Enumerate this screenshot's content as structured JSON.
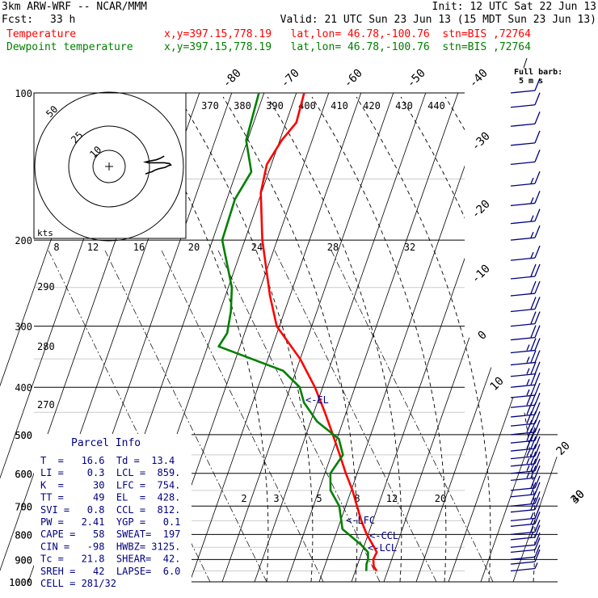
{
  "header": {
    "model": "3km ARW-WRF -- NCAR/MMM",
    "init": "Init: 12 UTC Sat 22 Jun 13",
    "fcst_label": "Fcst:",
    "fcst_value": "33 h",
    "valid": "Valid: 21 UTC Sun 23 Jun 13 (15 MDT Sun 23 Jun 13)",
    "temp_label": "Temperature",
    "temp_loc": "x,y=397.15,778.19   lat,lon= 46.78,-100.76  stn=BIS ,72764",
    "dew_label": "Dewpoint temperature",
    "dew_loc": "x,y=397.15,778.19   lat,lon= 46.78,-100.76  stn=BIS ,72764"
  },
  "barb_legend": {
    "line1": "Full barb:",
    "line2": "5 m s"
  },
  "parcel_info": {
    "title": "Parcel Info",
    "rows": [
      "T  =   16.6  Td =  13.4",
      "LI =    0.3  LCL =  859.",
      "K  =     30  LFC =  754.",
      "TT =     49  EL  =  428.",
      "SVI =   0.8  CCL =  812.",
      "PW =   2.41  YGP =   0.1",
      "CAPE =   58  SWEAT=  197",
      "CIN =   -98  HWBZ= 3125.",
      "Tc =   21.8  SHEAR=  42.",
      "SREH =   42  LAPSE=  6.0",
      "CELL = 281/32"
    ]
  },
  "hodograph": {
    "units": "kts",
    "ring_labels": [
      "10",
      "25",
      "50"
    ]
  },
  "colors": {
    "temperature": "#ff0000",
    "dewpoint": "#008000",
    "annotation": "#000080"
  },
  "chart_data": {
    "type": "line",
    "subtype": "skew-T log-p",
    "y_axis": {
      "label": "pressure (hPa)",
      "scale": "log",
      "ylim": [
        1000,
        100
      ],
      "ticks": [
        100,
        200,
        300,
        400,
        500,
        600,
        700,
        800,
        900,
        1000
      ]
    },
    "isotherm_labels": [
      "-80",
      "-70",
      "-60",
      "-50",
      "-40",
      "-30",
      "-20",
      "-10",
      "0",
      "10",
      "20",
      "30",
      "40"
    ],
    "theta_e_labels": [
      "370",
      "380",
      "390",
      "400",
      "410",
      "420",
      "430",
      "440"
    ],
    "mixing_ratio_top_labels": [
      "8",
      "12",
      "16",
      "20",
      "24",
      "28",
      "32"
    ],
    "mixing_ratio_low_labels": [
      "2",
      "3",
      "5",
      "8",
      "12",
      "20"
    ],
    "dry_adiabat_labels": [
      "290",
      "280",
      "270"
    ],
    "levels_marked": [
      "<-EL",
      "<-LFC",
      "<-CCL",
      "<-LCL"
    ],
    "series": [
      {
        "name": "Temperature",
        "points": [
          [
            950,
            16.6
          ],
          [
            930,
            15.2
          ],
          [
            900,
            14.3
          ],
          [
            870,
            14.6
          ],
          [
            850,
            13.3
          ],
          [
            800,
            9.6
          ],
          [
            750,
            6.4
          ],
          [
            700,
            3.5
          ],
          [
            650,
            0.4
          ],
          [
            600,
            -3.5
          ],
          [
            550,
            -7.4
          ],
          [
            500,
            -11.7
          ],
          [
            450,
            -16.6
          ],
          [
            400,
            -22.4
          ],
          [
            350,
            -30.0
          ],
          [
            320,
            -36.3
          ],
          [
            300,
            -40.8
          ],
          [
            260,
            -46.2
          ],
          [
            200,
            -54.6
          ],
          [
            160,
            -60.2
          ],
          [
            140,
            -61.4
          ],
          [
            125,
            -59.4
          ],
          [
            115,
            -56.8
          ],
          [
            100,
            -57.6
          ]
        ]
      },
      {
        "name": "Dewpoint temperature",
        "points": [
          [
            950,
            13.4
          ],
          [
            920,
            12.7
          ],
          [
            900,
            12.7
          ],
          [
            870,
            11.9
          ],
          [
            840,
            9.0
          ],
          [
            780,
            1.5
          ],
          [
            700,
            -2.0
          ],
          [
            650,
            -6.4
          ],
          [
            600,
            -8.3
          ],
          [
            550,
            -6.4
          ],
          [
            510,
            -9.4
          ],
          [
            470,
            -18.0
          ],
          [
            430,
            -24.1
          ],
          [
            400,
            -27.1
          ],
          [
            370,
            -34.0
          ],
          [
            330,
            -56.6
          ],
          [
            310,
            -55.4
          ],
          [
            280,
            -56.6
          ],
          [
            250,
            -58.9
          ],
          [
            200,
            -67.0
          ],
          [
            165,
            -67.5
          ],
          [
            145,
            -65.4
          ],
          [
            125,
            -70.4
          ],
          [
            100,
            -71.6
          ]
        ]
      }
    ],
    "wind_barbs": [
      {
        "p": 950,
        "kt": 5
      },
      {
        "p": 920,
        "kt": 10
      },
      {
        "p": 900,
        "kt": 10
      },
      {
        "p": 870,
        "kt": 10
      },
      {
        "p": 850,
        "kt": 10
      },
      {
        "p": 820,
        "kt": 15
      },
      {
        "p": 800,
        "kt": 15
      },
      {
        "p": 770,
        "kt": 15
      },
      {
        "p": 750,
        "kt": 15
      },
      {
        "p": 720,
        "kt": 20
      },
      {
        "p": 700,
        "kt": 20
      },
      {
        "p": 670,
        "kt": 20
      },
      {
        "p": 650,
        "kt": 20
      },
      {
        "p": 620,
        "kt": 25
      },
      {
        "p": 600,
        "kt": 25
      },
      {
        "p": 580,
        "kt": 25
      },
      {
        "p": 560,
        "kt": 25
      },
      {
        "p": 540,
        "kt": 30
      },
      {
        "p": 520,
        "kt": 30
      },
      {
        "p": 500,
        "kt": 30
      },
      {
        "p": 480,
        "kt": 30
      },
      {
        "p": 460,
        "kt": 30
      },
      {
        "p": 440,
        "kt": 30
      },
      {
        "p": 420,
        "kt": 25
      },
      {
        "p": 400,
        "kt": 25
      },
      {
        "p": 380,
        "kt": 25
      },
      {
        "p": 360,
        "kt": 25
      },
      {
        "p": 340,
        "kt": 25
      },
      {
        "p": 320,
        "kt": 20
      },
      {
        "p": 300,
        "kt": 20
      },
      {
        "p": 280,
        "kt": 20
      },
      {
        "p": 260,
        "kt": 20
      },
      {
        "p": 240,
        "kt": 20
      },
      {
        "p": 220,
        "kt": 15
      },
      {
        "p": 200,
        "kt": 15
      },
      {
        "p": 185,
        "kt": 15
      },
      {
        "p": 170,
        "kt": 15
      },
      {
        "p": 155,
        "kt": 15
      },
      {
        "p": 140,
        "kt": 10
      },
      {
        "p": 128,
        "kt": 10
      },
      {
        "p": 117,
        "kt": 10
      },
      {
        "p": 107,
        "kt": 10
      },
      {
        "p": 100,
        "kt": 10
      }
    ],
    "hodograph_uv_kt": [
      [
        3,
        3
      ],
      [
        6,
        5
      ],
      [
        8,
        6
      ],
      [
        10,
        8
      ],
      [
        13,
        10
      ],
      [
        18,
        12
      ],
      [
        20,
        14
      ],
      [
        22,
        15
      ],
      [
        21,
        17
      ],
      [
        17,
        18
      ],
      [
        12,
        18
      ],
      [
        8,
        18
      ],
      [
        5,
        18
      ],
      [
        3,
        19
      ],
      [
        5,
        20
      ],
      [
        8,
        21
      ],
      [
        11,
        22
      ],
      [
        14,
        24
      ],
      [
        17,
        27
      ]
    ]
  }
}
